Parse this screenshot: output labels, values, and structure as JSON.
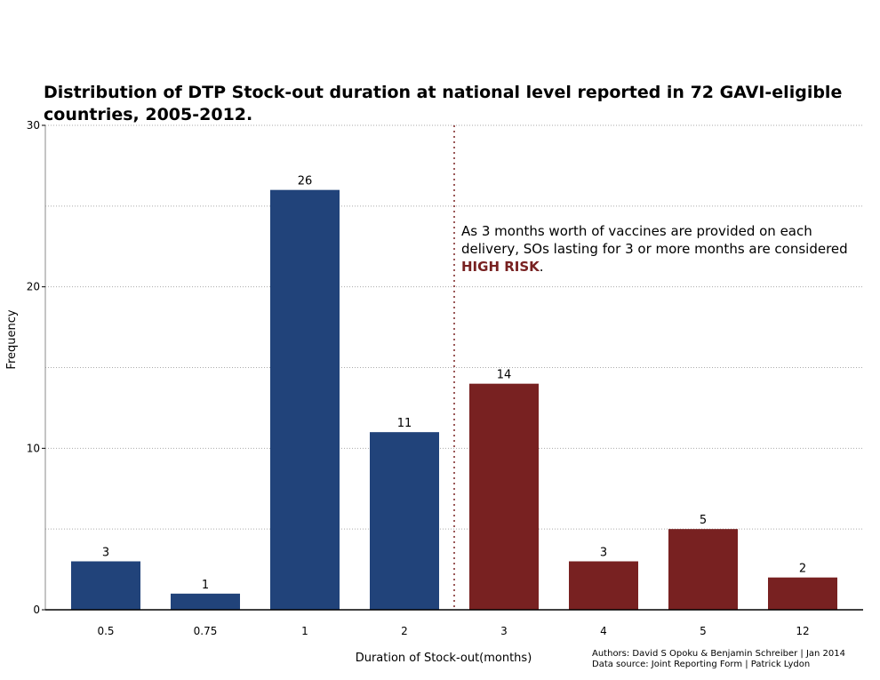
{
  "chart_data": {
    "type": "bar",
    "title": "Distribution of DTP Stock-out duration at national level reported in 72 GAVI-eligible countries, 2005-2012.",
    "xlabel": "Duration of Stock-out(months)",
    "ylabel": "Frequency",
    "categories": [
      "0.5",
      "0.75",
      "1",
      "2",
      "3",
      "4",
      "5",
      "12"
    ],
    "values": [
      3,
      1,
      26,
      11,
      14,
      3,
      5,
      2
    ],
    "ylim": [
      0,
      30
    ],
    "yticks": [
      0,
      10,
      20,
      30
    ],
    "grid": true,
    "risk_threshold_category": "3",
    "colors": {
      "low_risk": "#21437a",
      "high_risk": "#782121",
      "threshold_line": "#782121"
    },
    "annotation": {
      "line1": "As 3 months worth of vaccines are provided on each",
      "line2": "delivery, SOs lasting for 3 or more months are considered",
      "highlight": "HIGH RISK",
      "suffix": "."
    }
  },
  "credits": {
    "authors": "Authors: David S Opoku & Benjamin Schreiber | Jan 2014",
    "source": "Data source: Joint Reporting Form | Patrick Lydon"
  }
}
